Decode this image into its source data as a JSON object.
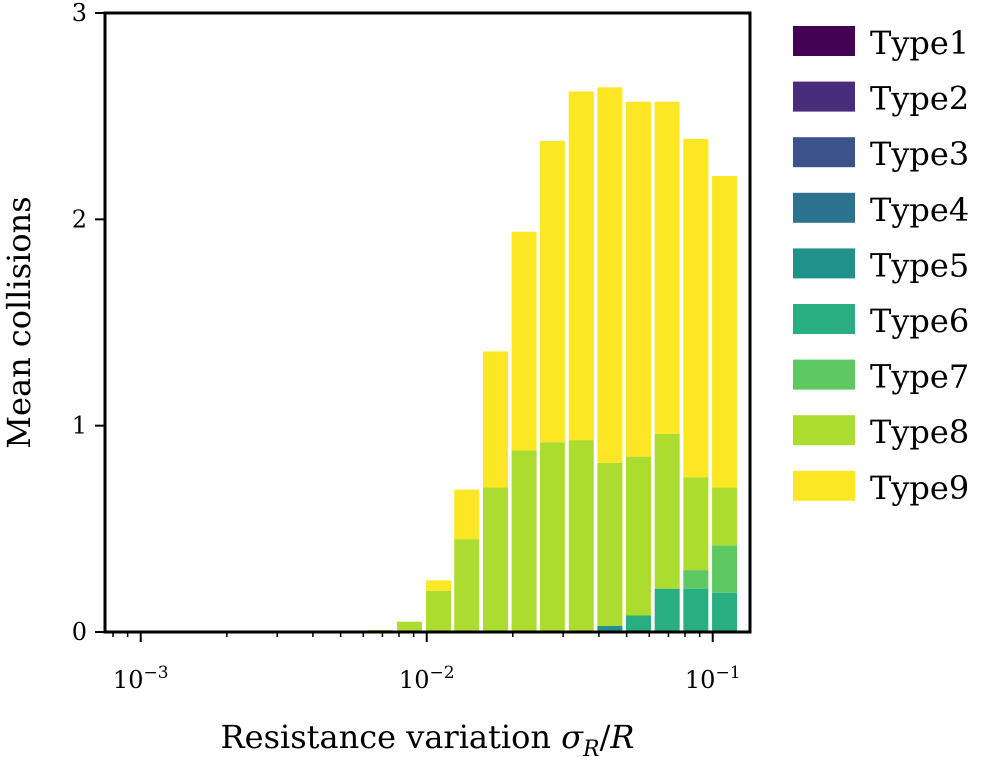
{
  "chart_data": {
    "type": "bar",
    "stacked": true,
    "x_scale": "log",
    "xlabel": "Resistance variation σ_R/R",
    "ylabel": "Mean collisions",
    "xlim": [
      0.00075,
      0.135
    ],
    "ylim": [
      0,
      3
    ],
    "yticks": [
      0,
      1,
      2,
      3
    ],
    "xticks": [
      0.001,
      0.01,
      0.1
    ],
    "xtick_labels": [
      {
        "base": "10",
        "exp": "−3"
      },
      {
        "base": "10",
        "exp": "−2"
      },
      {
        "base": "10",
        "exp": "−1"
      }
    ],
    "legend_position": "outside-right",
    "x": [
      0.0069,
      0.0087,
      0.011,
      0.0138,
      0.0174,
      0.0219,
      0.0275,
      0.0347,
      0.0437,
      0.055,
      0.0693,
      0.0873,
      0.11
    ],
    "series": [
      {
        "name": "Type1",
        "color": "#440154",
        "values": [
          0,
          0,
          0,
          0,
          0,
          0,
          0,
          0,
          0,
          0,
          0,
          0,
          0
        ]
      },
      {
        "name": "Type2",
        "color": "#472d7b",
        "values": [
          0,
          0,
          0,
          0,
          0,
          0,
          0,
          0,
          0,
          0,
          0,
          0,
          0
        ]
      },
      {
        "name": "Type3",
        "color": "#3b528b",
        "values": [
          0,
          0,
          0,
          0,
          0,
          0,
          0,
          0,
          0,
          0,
          0,
          0,
          0
        ]
      },
      {
        "name": "Type4",
        "color": "#2c728e",
        "values": [
          0,
          0,
          0,
          0,
          0,
          0,
          0,
          0,
          0,
          0,
          0,
          0,
          0
        ]
      },
      {
        "name": "Type5",
        "color": "#21918c",
        "values": [
          0,
          0,
          0,
          0,
          0,
          0,
          0,
          0,
          0.03,
          0.01,
          0,
          0,
          0
        ]
      },
      {
        "name": "Type6",
        "color": "#28ae80",
        "values": [
          0,
          0,
          0,
          0,
          0,
          0,
          0,
          0,
          0,
          0.07,
          0.21,
          0.21,
          0.19
        ]
      },
      {
        "name": "Type7",
        "color": "#5ec962",
        "values": [
          0,
          0,
          0,
          0,
          0,
          0,
          0,
          0,
          0,
          0,
          0,
          0.09,
          0.23
        ]
      },
      {
        "name": "Type8",
        "color": "#addc30",
        "values": [
          0.01,
          0.05,
          0.2,
          0.45,
          0.7,
          0.88,
          0.92,
          0.93,
          0.79,
          0.77,
          0.75,
          0.45,
          0.28
        ]
      },
      {
        "name": "Type9",
        "color": "#fde725",
        "values": [
          0,
          0,
          0.05,
          0.24,
          0.66,
          1.06,
          1.46,
          1.69,
          1.82,
          1.72,
          1.61,
          1.64,
          1.51
        ]
      }
    ]
  }
}
